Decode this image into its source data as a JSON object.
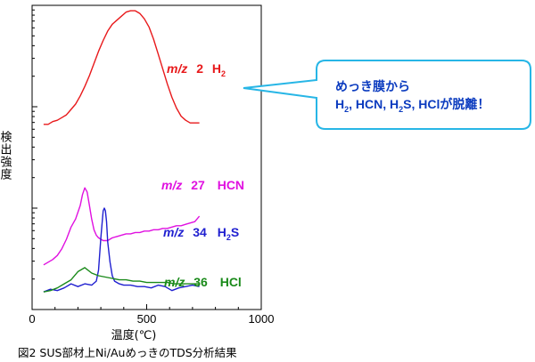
{
  "chart_data": {
    "type": "line",
    "xlabel": "温度(℃)",
    "ylabel": "検出強度",
    "xlim": [
      0,
      1000
    ],
    "xticks": [
      0,
      500,
      1000
    ],
    "y_scale": "log",
    "grid": false,
    "series": [
      {
        "label_parts": [
          "m/z",
          "2",
          "H",
          "2",
          ""
        ],
        "color": "#e8191b",
        "x": [
          50,
          70,
          90,
          110,
          130,
          150,
          170,
          190,
          210,
          230,
          250,
          270,
          290,
          310,
          330,
          350,
          370,
          390,
          410,
          430,
          450,
          470,
          490,
          510,
          530,
          550,
          570,
          590,
          610,
          630,
          650,
          670,
          690,
          710,
          730
        ],
        "y": [
          0.12,
          0.12,
          0.14,
          0.15,
          0.17,
          0.19,
          0.23,
          0.27,
          0.33,
          0.4,
          0.48,
          0.57,
          0.66,
          0.74,
          0.81,
          0.86,
          0.89,
          0.92,
          0.95,
          0.96,
          0.96,
          0.94,
          0.9,
          0.84,
          0.75,
          0.64,
          0.53,
          0.42,
          0.32,
          0.24,
          0.18,
          0.15,
          0.13,
          0.13,
          0.13
        ]
      },
      {
        "label_parts": [
          "m/z",
          "27",
          "HCN",
          "",
          ""
        ],
        "color": "#e010e0",
        "x": [
          50,
          70,
          90,
          110,
          130,
          150,
          170,
          190,
          210,
          220,
          230,
          240,
          250,
          260,
          270,
          280,
          290,
          310,
          330,
          350,
          370,
          390,
          410,
          430,
          450,
          470,
          490,
          510,
          530,
          550,
          570,
          590,
          610,
          630,
          650,
          670,
          690,
          710,
          730
        ],
        "y": [
          -0.92,
          -0.9,
          -0.88,
          -0.85,
          -0.8,
          -0.73,
          -0.64,
          -0.58,
          -0.48,
          -0.4,
          -0.35,
          -0.38,
          -0.48,
          -0.58,
          -0.66,
          -0.7,
          -0.72,
          -0.74,
          -0.74,
          -0.72,
          -0.71,
          -0.7,
          -0.69,
          -0.69,
          -0.68,
          -0.68,
          -0.67,
          -0.67,
          -0.66,
          -0.66,
          -0.65,
          -0.65,
          -0.64,
          -0.63,
          -0.63,
          -0.62,
          -0.61,
          -0.6,
          -0.56
        ]
      },
      {
        "label_parts": [
          "m/z",
          "34",
          "H",
          "2",
          "S"
        ],
        "color": "#1f1fd0",
        "x": [
          50,
          80,
          110,
          140,
          170,
          200,
          230,
          260,
          280,
          290,
          300,
          310,
          315,
          320,
          325,
          330,
          340,
          350,
          360,
          370,
          380,
          400,
          430,
          460,
          490,
          520,
          550,
          580,
          610,
          640,
          670,
          700,
          730
        ],
        "y": [
          -1.12,
          -1.1,
          -1.11,
          -1.09,
          -1.06,
          -1.08,
          -1.06,
          -1.07,
          -1.04,
          -0.96,
          -0.72,
          -0.52,
          -0.5,
          -0.52,
          -0.6,
          -0.75,
          -0.9,
          -1.0,
          -1.04,
          -1.05,
          -1.06,
          -1.07,
          -1.07,
          -1.08,
          -1.08,
          -1.09,
          -1.07,
          -1.08,
          -1.11,
          -1.09,
          -1.08,
          -1.07,
          -1.08
        ]
      },
      {
        "label_parts": [
          "m/z",
          "36",
          "HCl",
          "",
          ""
        ],
        "color": "#1a8a1a",
        "x": [
          50,
          80,
          110,
          140,
          170,
          200,
          230,
          260,
          290,
          320,
          350,
          380,
          410,
          440,
          470,
          500,
          530,
          560,
          590,
          620,
          650,
          680,
          710,
          730
        ],
        "y": [
          -1.12,
          -1.11,
          -1.09,
          -1.06,
          -1.03,
          -0.97,
          -0.94,
          -0.98,
          -1.0,
          -1.01,
          -1.02,
          -1.03,
          -1.03,
          -1.04,
          -1.04,
          -1.05,
          -1.05,
          -1.05,
          -1.05,
          -1.06,
          -1.06,
          -1.06,
          -1.06,
          -1.06
        ]
      }
    ],
    "annotation": {
      "line1": "めっき膜から",
      "line2_parts": [
        "H",
        "2",
        ", HCN, H",
        "2",
        "S, HClが脱離！"
      ],
      "border_color": "#27b6e6"
    }
  },
  "caption": "図2  SUS部材上Ni/AuめっきのTDS分析結果"
}
